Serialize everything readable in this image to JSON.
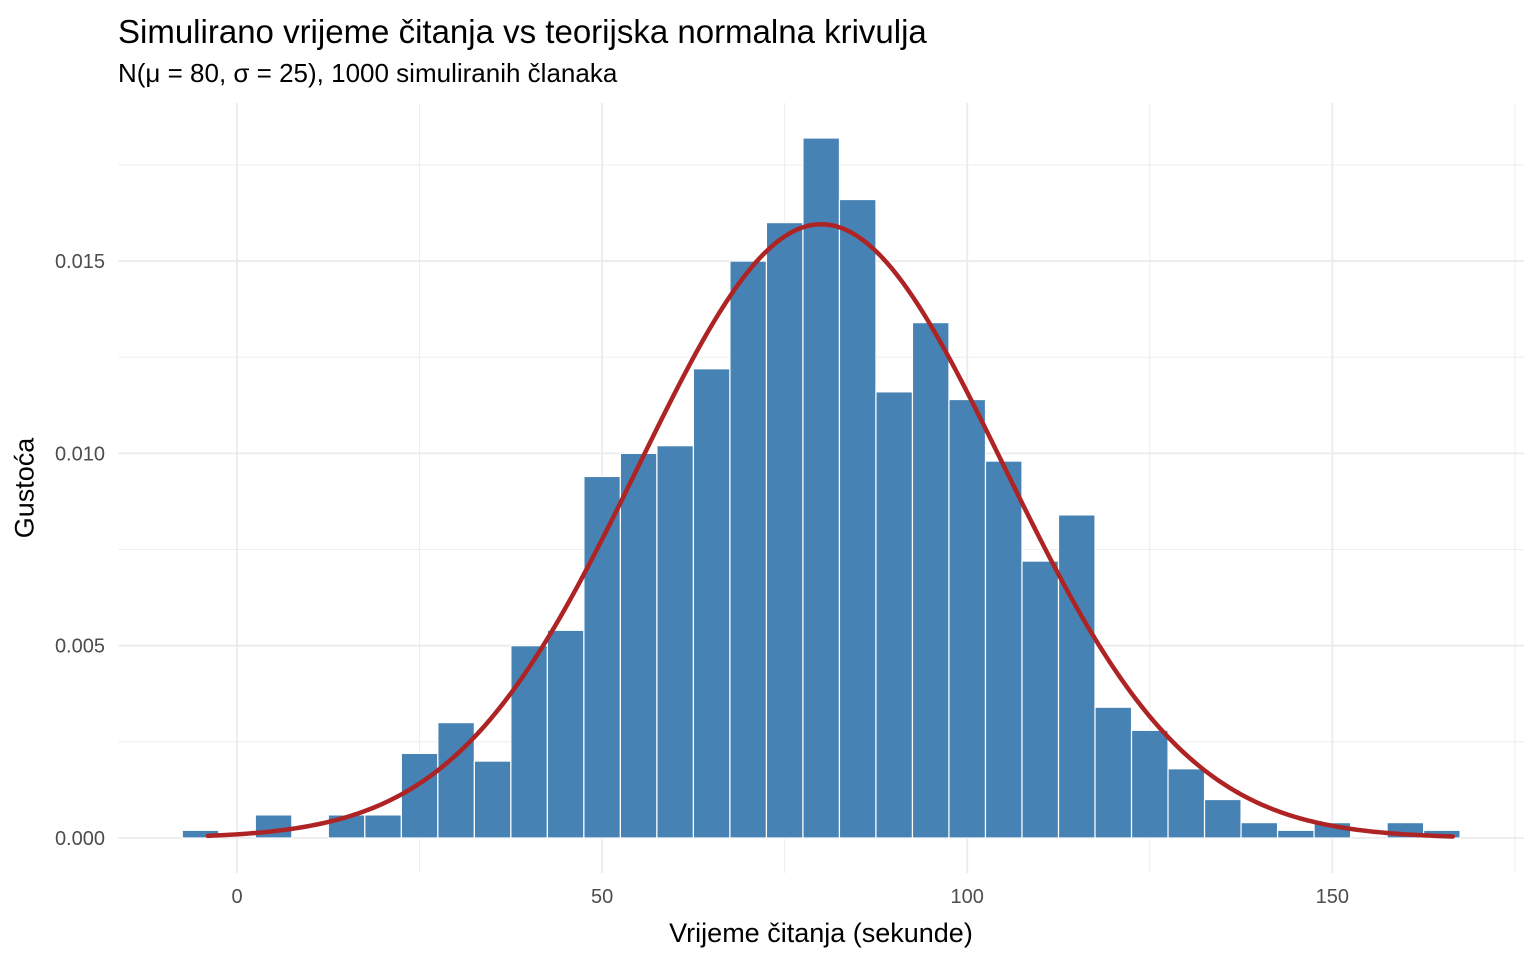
{
  "chart_data": {
    "type": "bar",
    "subtype": "histogram_with_density_curve",
    "title": "Simulirano vrijeme čitanja vs teorijska normalna krivulja",
    "subtitle": "N(μ = 80, σ = 25), 1000 simuliranih članaka",
    "xlabel": "Vrijeme čitanja (sekunde)",
    "ylabel": "Gustoća",
    "n_simulated": 1000,
    "bin_width": 5,
    "bin_centers": [
      -5,
      0,
      5,
      10,
      15,
      20,
      25,
      30,
      35,
      40,
      45,
      50,
      55,
      60,
      65,
      70,
      75,
      80,
      85,
      90,
      95,
      100,
      105,
      110,
      115,
      120,
      125,
      130,
      135,
      140,
      145,
      150,
      155,
      160,
      165
    ],
    "densities": [
      0.0002,
      0,
      0.0006,
      0,
      0.0006,
      0.0006,
      0.0022,
      0.003,
      0.002,
      0.005,
      0.0054,
      0.0094,
      0.01,
      0.0102,
      0.0122,
      0.015,
      0.016,
      0.0182,
      0.0166,
      0.0116,
      0.0134,
      0.0114,
      0.0098,
      0.0072,
      0.0084,
      0.0034,
      0.0028,
      0.0018,
      0.001,
      0.0004,
      0.0002,
      0.0004,
      0,
      0.0004,
      0.0002
    ],
    "counts": [
      1,
      0,
      3,
      0,
      3,
      3,
      11,
      15,
      10,
      25,
      27,
      47,
      50,
      51,
      61,
      75,
      80,
      91,
      83,
      58,
      67,
      57,
      49,
      36,
      42,
      17,
      14,
      9,
      5,
      2,
      1,
      2,
      0,
      2,
      1
    ],
    "x_ticks": [
      {
        "value": 0,
        "label": "0"
      },
      {
        "value": 50,
        "label": "50"
      },
      {
        "value": 100,
        "label": "100"
      },
      {
        "value": 150,
        "label": "150"
      }
    ],
    "x_minor_ticks": [
      25,
      75,
      125,
      175
    ],
    "y_ticks": [
      {
        "value": 0.0,
        "label": "0.000"
      },
      {
        "value": 0.005,
        "label": "0.005"
      },
      {
        "value": 0.01,
        "label": "0.010"
      },
      {
        "value": 0.015,
        "label": "0.015"
      }
    ],
    "y_minor_ticks": [
      0.0025,
      0.0075,
      0.0125,
      0.0175
    ],
    "xlim": [
      -16.25,
      176.25
    ],
    "ylim": [
      -0.00091,
      0.01911
    ],
    "grid": "major_and_minor",
    "legend_position": "none",
    "curve": {
      "type": "normal_density",
      "mu": 80,
      "sigma": 25,
      "x_min": -4,
      "x_max": 166.5,
      "peak_density": 0.01596
    },
    "colors": {
      "bar_fill": "#4682B4",
      "bar_border": "#FFFFFF",
      "curve": "#AE2424",
      "grid": "#EBEBEB",
      "axis_text": "#4D4D4D",
      "title_text": "#000000",
      "background": "#FFFFFF"
    }
  }
}
